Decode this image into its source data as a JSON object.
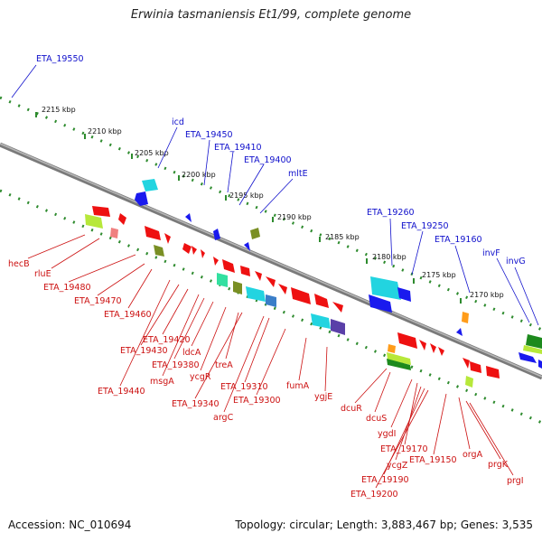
{
  "title": "Erwinia tasmaniensis Et1/99, complete genome",
  "accession": "Accession: NC_010694",
  "topology": "Topology: circular; Length: 3,883,467 bp; Genes: 3,535",
  "colors": {
    "forward_label": "#1010cc",
    "reverse_label": "#cc1111",
    "backbone": "#7a7a7a",
    "tick": "#2e8b2e"
  },
  "kbp_ticks": [
    "2215 kbp",
    "2210 kbp",
    "2205 kbp",
    "2200 kbp",
    "2195 kbp",
    "2190 kbp",
    "2185 kbp",
    "2180 kbp",
    "2175 kbp",
    "2170 kbp"
  ],
  "forward_genes": [
    "ETA_19550",
    "icd",
    "ETA_19450",
    "ETA_19410",
    "ETA_19400",
    "mltE",
    "ETA_19260",
    "ETA_19250",
    "ETA_19160",
    "invF",
    "invG"
  ],
  "reverse_genes": [
    "hecB",
    "rluE",
    "ETA_19480",
    "ETA_19470",
    "ETA_19460",
    "ETA_19440",
    "ETA_19430",
    "ETA_19420",
    "msgA",
    "ETA_19380",
    "ldcA",
    "ycgR",
    "treA",
    "ETA_19340",
    "argC",
    "ETA_19310",
    "ETA_19300",
    "fumA",
    "ygjE",
    "dcuR",
    "dcuS",
    "ygdI",
    "ETA_19170",
    "ycgZ",
    "ETA_19190",
    "ETA_19200",
    "ETA_19150",
    "orgA",
    "prgK",
    "prgI"
  ]
}
